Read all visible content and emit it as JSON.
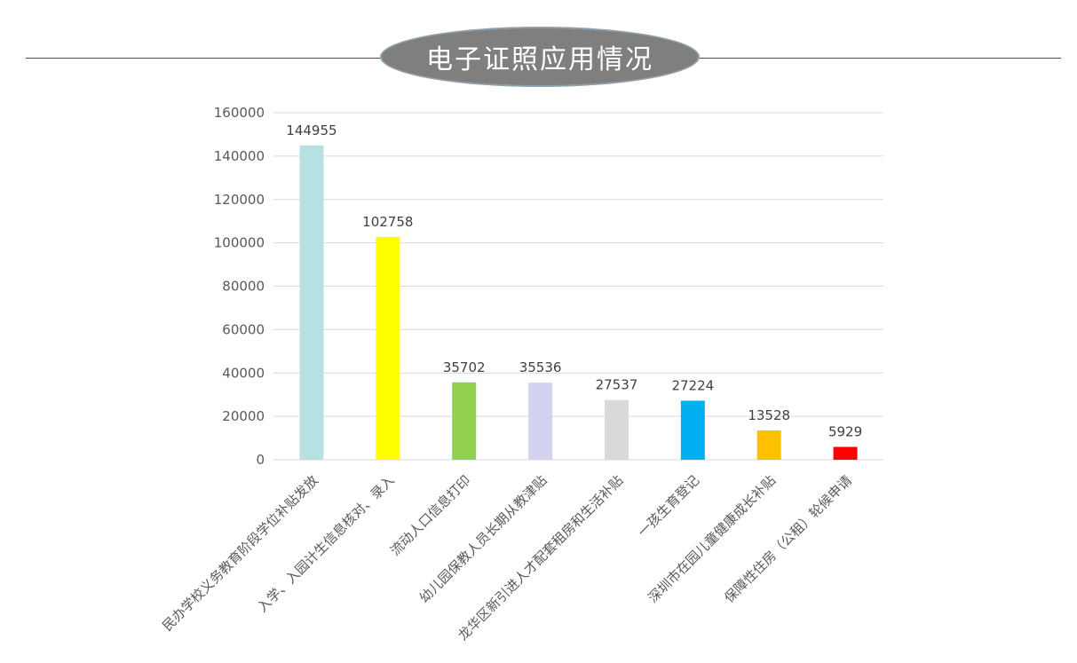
{
  "title": "电子证照应用情况",
  "colors": {
    "title_bg": "#7f7f7f",
    "title_line": "#c0202a",
    "grid": "#d9d9d9"
  },
  "chart_data": {
    "type": "bar",
    "title": "电子证照应用情况",
    "xlabel": "",
    "ylabel": "",
    "ylim": [
      0,
      160000
    ],
    "yticks": [
      0,
      20000,
      40000,
      60000,
      80000,
      100000,
      120000,
      140000,
      160000
    ],
    "grid": true,
    "legend": "none",
    "categories": [
      "民办学校义务教育阶段学位补贴发放",
      "入学、入园计生信息核对、录入",
      "流动人口信息打印",
      "幼儿园保教人员长期从教津贴",
      "龙华区新引进人才配套租房和生活补贴",
      "一孩生育登记",
      "深圳市在园儿童健康成长补贴",
      "保障性住房（公租）轮候申请"
    ],
    "values": [
      144955,
      102758,
      35702,
      35536,
      27537,
      27224,
      13528,
      5929
    ],
    "bar_colors": [
      "#b7e0e3",
      "#ffff00",
      "#92d050",
      "#d3d3f0",
      "#d9d9d9",
      "#00b0f0",
      "#ffc000",
      "#ff0000"
    ]
  }
}
